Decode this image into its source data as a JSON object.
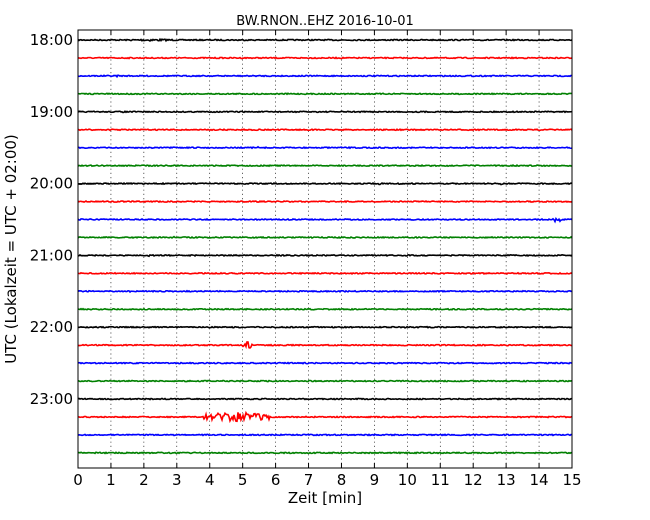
{
  "chart_data": {
    "type": "line",
    "title": "BW.RNON..EHZ 2016-10-01",
    "xlabel": "Zeit  [min]",
    "ylabel": "UTC (Lokalzeit = UTC + 02:00)",
    "xlim": [
      0,
      15
    ],
    "x_ticks": [
      "0",
      "1",
      "2",
      "3",
      "4",
      "5",
      "6",
      "7",
      "8",
      "9",
      "10",
      "11",
      "12",
      "13",
      "14",
      "15"
    ],
    "y_tick_labels": [
      "18:00",
      "19:00",
      "20:00",
      "21:00",
      "22:00",
      "23:00"
    ],
    "row_start": "18:00",
    "row_minutes": 15,
    "grid": true,
    "grid_style": "vertical dotted",
    "colors": [
      "#000000",
      "#ff0000",
      "#0000ff",
      "#008000"
    ],
    "traces": [
      {
        "start": "18:00",
        "events": [
          {
            "t": 1.5,
            "d": 1.5,
            "a": 1.2
          },
          {
            "t": 4.8,
            "d": 0.1,
            "a": 1.2
          }
        ]
      },
      {
        "start": "18:15",
        "events": []
      },
      {
        "start": "18:30",
        "events": [
          {
            "t": 1.1,
            "d": 0.2,
            "a": 1.0
          }
        ]
      },
      {
        "start": "18:45",
        "events": []
      },
      {
        "start": "19:00",
        "events": [
          {
            "t": 1.3,
            "d": 0.1,
            "a": 1.0
          }
        ]
      },
      {
        "start": "19:15",
        "events": []
      },
      {
        "start": "19:30",
        "events": [
          {
            "t": 5.3,
            "d": 0.3,
            "a": 1.0
          }
        ]
      },
      {
        "start": "19:45",
        "events": []
      },
      {
        "start": "20:00",
        "events": [
          {
            "t": 9.1,
            "d": 0.1,
            "a": 1.5
          },
          {
            "t": 12.8,
            "d": 0.1,
            "a": 1.5
          }
        ]
      },
      {
        "start": "20:15",
        "events": []
      },
      {
        "start": "20:30",
        "events": [
          {
            "t": 14.4,
            "d": 0.3,
            "a": 3.0
          }
        ]
      },
      {
        "start": "20:45",
        "events": [
          {
            "t": 2.8,
            "d": 0.2,
            "a": 1.0
          }
        ]
      },
      {
        "start": "21:00",
        "events": [
          {
            "t": 2.1,
            "d": 0.1,
            "a": 1.0
          },
          {
            "t": 12.3,
            "d": 0.1,
            "a": 1.0
          }
        ]
      },
      {
        "start": "21:15",
        "events": []
      },
      {
        "start": "21:30",
        "events": [
          {
            "t": 1.5,
            "d": 0.2,
            "a": 1.0
          }
        ]
      },
      {
        "start": "21:45",
        "events": []
      },
      {
        "start": "22:00",
        "events": [
          {
            "t": 2.1,
            "d": 0.2,
            "a": 1.0
          },
          {
            "t": 9.9,
            "d": 0.1,
            "a": 1.0
          }
        ]
      },
      {
        "start": "22:15",
        "events": [
          {
            "t": 5.0,
            "d": 0.3,
            "a": 5.0
          }
        ]
      },
      {
        "start": "22:30",
        "events": [
          {
            "t": 7.8,
            "d": 0.1,
            "a": 1.0
          }
        ]
      },
      {
        "start": "22:45",
        "events": []
      },
      {
        "start": "23:00",
        "events": [
          {
            "t": 2.5,
            "d": 0.1,
            "a": 1.0
          }
        ]
      },
      {
        "start": "23:15",
        "events": [
          {
            "t": 3.8,
            "d": 2.0,
            "a": 5.0
          }
        ]
      },
      {
        "start": "23:30",
        "events": []
      },
      {
        "start": "23:45",
        "events": []
      }
    ]
  }
}
